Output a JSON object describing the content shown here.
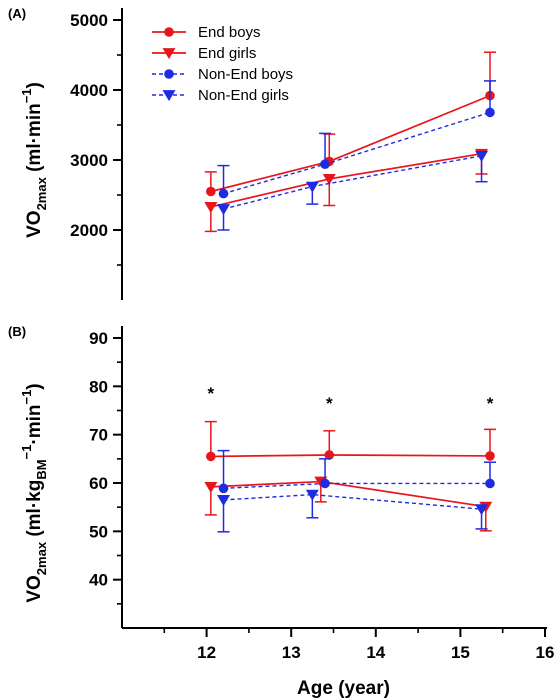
{
  "chart_data": [
    {
      "type": "line",
      "panel": "(A)",
      "ylabel": "VO2max (ml·min−1)",
      "ylabel_parts": {
        "base": "VO",
        "sub": "2max",
        "unit_open": " (ml·min",
        "sup": "−1",
        "unit_close": ")"
      },
      "ylim": [
        1000,
        5000
      ],
      "yticks": [
        2000,
        3000,
        4000,
        5000
      ],
      "yminor": 500,
      "legend_position": "top-left",
      "series": [
        {
          "name": "End boys",
          "color": "#e8161c",
          "line": "solid",
          "marker": "circle",
          "x": [
            12.05,
            13.45,
            15.35
          ],
          "y": [
            2550,
            2980,
            3920
          ],
          "err": [
            280,
            390,
            620
          ]
        },
        {
          "name": "End girls",
          "color": "#e8161c",
          "line": "solid",
          "marker": "triangle-down",
          "x": [
            12.05,
            13.45,
            15.25
          ],
          "y": [
            2330,
            2730,
            3090
          ],
          "err": [
            350,
            380,
            290
          ]
        },
        {
          "name": "Non-End boys",
          "color": "#1f2be0",
          "line": "dashed",
          "marker": "circle",
          "x": [
            12.2,
            13.4,
            15.35
          ],
          "y": [
            2520,
            2940,
            3680
          ],
          "err": [
            400,
            440,
            450
          ]
        },
        {
          "name": "Non-End girls",
          "color": "#1f2be0",
          "line": "dashed",
          "marker": "triangle-down",
          "x": [
            12.2,
            13.25,
            15.25
          ],
          "y": [
            2300,
            2620,
            3060
          ],
          "err": [
            300,
            250,
            370
          ]
        }
      ]
    },
    {
      "type": "line",
      "panel": "(B)",
      "ylabel": "VO2max (ml·kgBM−1·min−1)",
      "ylabel_parts": {
        "base": "VO",
        "sub": "2max",
        "unit_open": " (ml·kg",
        "sub2": "BM",
        "sup": "−1",
        "mid": "·min",
        "sup2": "−1",
        "unit_close": ")"
      },
      "xlabel": "Age (year)",
      "xlim": [
        11,
        16
      ],
      "xticks": [
        12,
        13,
        14,
        15,
        16
      ],
      "xminor": 0.5,
      "ylim": [
        30,
        90
      ],
      "yticks": [
        40,
        50,
        60,
        70,
        80,
        90
      ],
      "yminor": 5,
      "significance": [
        {
          "x": 12.05,
          "y": 79,
          "label": "*"
        },
        {
          "x": 13.45,
          "y": 77,
          "label": "*"
        },
        {
          "x": 15.35,
          "y": 77,
          "label": "*"
        }
      ],
      "series": [
        {
          "name": "End boys",
          "color": "#e8161c",
          "line": "solid",
          "marker": "circle",
          "x": [
            12.05,
            13.45,
            15.35
          ],
          "y": [
            65.5,
            65.8,
            65.6
          ],
          "err": [
            7.2,
            5.0,
            5.5
          ]
        },
        {
          "name": "End girls",
          "color": "#e8161c",
          "line": "solid",
          "marker": "triangle-down",
          "x": [
            12.05,
            13.35,
            15.3
          ],
          "y": [
            59.2,
            60.3,
            55.1
          ],
          "err": [
            5.8,
            4.2,
            5.0
          ]
        },
        {
          "name": "Non-End boys",
          "color": "#1f2be0",
          "line": "dashed",
          "marker": "circle",
          "x": [
            12.2,
            13.4,
            15.35
          ],
          "y": [
            58.9,
            59.9,
            59.9
          ],
          "err": [
            7.8,
            5.1,
            4.4
          ]
        },
        {
          "name": "Non-End girls",
          "color": "#1f2be0",
          "line": "dashed",
          "marker": "triangle-down",
          "x": [
            12.2,
            13.25,
            15.25
          ],
          "y": [
            56.5,
            57.6,
            54.6
          ],
          "err": [
            6.6,
            4.8,
            4.1
          ]
        }
      ]
    }
  ]
}
